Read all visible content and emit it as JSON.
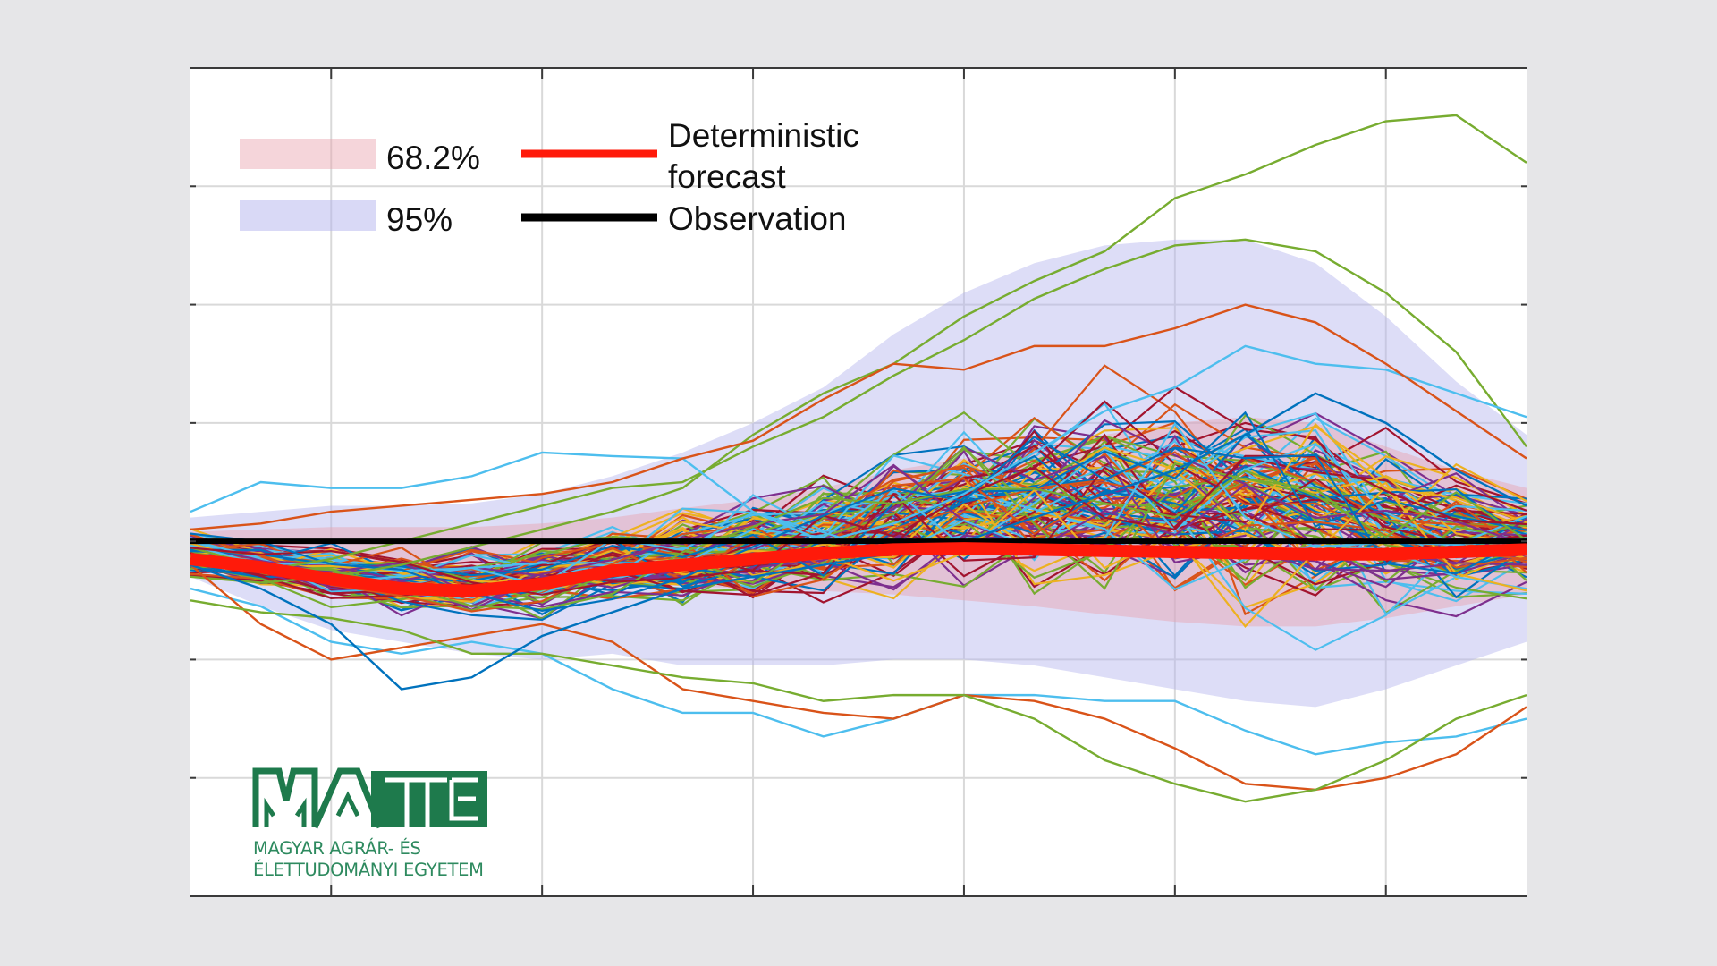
{
  "chart_data": {
    "type": "line",
    "title": "",
    "xlabel": "",
    "ylabel": "",
    "x": [
      0,
      1,
      2,
      3,
      4,
      5,
      6,
      7,
      8,
      9,
      10,
      11,
      12,
      13,
      14,
      15,
      16,
      17,
      18,
      19
    ],
    "xlim": [
      0,
      19
    ],
    "ylim": [
      -3,
      4
    ],
    "x_gridlines": [
      2,
      5,
      8,
      11,
      14,
      17
    ],
    "y_gridlines": [
      -2,
      -1,
      0,
      1,
      2,
      3
    ],
    "grid": true,
    "tick_labels_shown": false,
    "legend_placement": "top-left",
    "legend": [
      {
        "label": "68.2%",
        "kind": "band",
        "color": "#e8a2ae"
      },
      {
        "label": "95%",
        "kind": "band",
        "color": "#b3b3ee"
      },
      {
        "label": "Deterministic\nforecast",
        "kind": "line",
        "color": "#ff1a0a"
      },
      {
        "label": "Observation",
        "kind": "line",
        "color": "#000000"
      }
    ],
    "series": [
      {
        "name": "Observation",
        "color": "#000000",
        "values": [
          0,
          0,
          0,
          0,
          0,
          0,
          0,
          0,
          0,
          0,
          0,
          0,
          0,
          0,
          0,
          0,
          0,
          0,
          0,
          0
        ]
      },
      {
        "name": "Deterministic forecast",
        "color": "#ff1a0a",
        "values": [
          -0.15,
          -0.22,
          -0.32,
          -0.4,
          -0.42,
          -0.36,
          -0.25,
          -0.2,
          -0.15,
          -0.1,
          -0.07,
          -0.06,
          -0.07,
          -0.08,
          -0.09,
          -0.1,
          -0.11,
          -0.11,
          -0.09,
          -0.07
        ]
      }
    ],
    "bands": [
      {
        "name": "95%",
        "color": "#b3b3ee",
        "upper": [
          0.2,
          0.25,
          0.3,
          0.3,
          0.32,
          0.4,
          0.55,
          0.75,
          1.0,
          1.3,
          1.75,
          2.1,
          2.35,
          2.5,
          2.55,
          2.55,
          2.35,
          1.9,
          1.35,
          0.9
        ],
        "lower": [
          -0.3,
          -0.55,
          -0.75,
          -0.85,
          -0.95,
          -1.0,
          -0.95,
          -1.05,
          -1.05,
          -1.05,
          -1.0,
          -1.0,
          -1.05,
          -1.15,
          -1.25,
          -1.35,
          -1.4,
          -1.25,
          -1.05,
          -0.85
        ]
      },
      {
        "name": "68.2%",
        "color": "#e8a2ae",
        "upper": [
          0.08,
          0.1,
          0.12,
          0.12,
          0.12,
          0.15,
          0.2,
          0.28,
          0.35,
          0.45,
          0.6,
          0.7,
          0.8,
          0.9,
          1.0,
          1.05,
          1.0,
          0.8,
          0.6,
          0.45
        ],
        "lower": [
          -0.12,
          -0.2,
          -0.28,
          -0.32,
          -0.35,
          -0.35,
          -0.35,
          -0.38,
          -0.4,
          -0.42,
          -0.45,
          -0.5,
          -0.55,
          -0.62,
          -0.68,
          -0.72,
          -0.72,
          -0.65,
          -0.55,
          -0.45
        ]
      }
    ],
    "ensemble_colors": [
      "#0072bd",
      "#d95319",
      "#edb120",
      "#7e2f8e",
      "#77ac30",
      "#4dbeee",
      "#a2142f"
    ],
    "ensemble_size": 120,
    "ensemble_seed": 7,
    "ensemble_notable_members": [
      {
        "color": "#77ac30",
        "values": [
          -0.3,
          -0.35,
          -0.3,
          -0.2,
          -0.05,
          0.1,
          0.25,
          0.45,
          0.9,
          1.25,
          1.5,
          1.9,
          2.2,
          2.45,
          2.9,
          3.1,
          3.35,
          3.55,
          3.6,
          3.2
        ]
      },
      {
        "color": "#77ac30",
        "values": [
          -0.2,
          -0.25,
          -0.15,
          0.0,
          0.15,
          0.3,
          0.45,
          0.5,
          0.8,
          1.05,
          1.4,
          1.7,
          2.05,
          2.3,
          2.5,
          2.55,
          2.45,
          2.1,
          1.6,
          0.8
        ]
      },
      {
        "color": "#4dbeee",
        "values": [
          0.25,
          0.5,
          0.45,
          0.45,
          0.55,
          0.75,
          0.72,
          0.7,
          0.25,
          0.0,
          0.15,
          0.4,
          0.75,
          1.1,
          1.3,
          1.65,
          1.5,
          1.45,
          1.25,
          1.05
        ]
      },
      {
        "color": "#4dbeee",
        "values": [
          -0.4,
          -0.55,
          -0.85,
          -0.95,
          -0.85,
          -0.95,
          -1.25,
          -1.45,
          -1.45,
          -1.65,
          -1.5,
          -1.3,
          -1.3,
          -1.35,
          -1.35,
          -1.6,
          -1.8,
          -1.7,
          -1.65,
          -1.5
        ]
      },
      {
        "color": "#d95319",
        "values": [
          -0.2,
          -0.7,
          -1.0,
          -0.9,
          -0.8,
          -0.7,
          -0.85,
          -1.25,
          -1.35,
          -1.45,
          -1.5,
          -1.3,
          -1.35,
          -1.5,
          -1.75,
          -2.05,
          -2.1,
          -2.0,
          -1.8,
          -1.4
        ]
      },
      {
        "color": "#77ac30",
        "values": [
          -0.5,
          -0.6,
          -0.65,
          -0.75,
          -0.95,
          -0.95,
          -1.05,
          -1.15,
          -1.2,
          -1.35,
          -1.3,
          -1.3,
          -1.5,
          -1.85,
          -2.05,
          -2.2,
          -2.1,
          -1.85,
          -1.5,
          -1.3
        ]
      },
      {
        "color": "#d95319",
        "values": [
          0.1,
          0.15,
          0.25,
          0.3,
          0.35,
          0.4,
          0.5,
          0.7,
          0.85,
          1.2,
          1.5,
          1.45,
          1.65,
          1.65,
          1.8,
          2.0,
          1.85,
          1.5,
          1.1,
          0.7
        ]
      },
      {
        "color": "#0072bd",
        "values": [
          -0.2,
          -0.4,
          -0.7,
          -1.25,
          -1.15,
          -0.8,
          -0.6,
          -0.4,
          -0.3,
          -0.2,
          -0.1,
          0.0,
          0.2,
          0.4,
          0.6,
          0.9,
          1.25,
          1.0,
          0.6,
          0.3
        ]
      }
    ]
  },
  "legend": {
    "band68_label": "68.2%",
    "band95_label": "95%",
    "det_label_line1": "Deterministic",
    "det_label_line2": "forecast",
    "obs_label": "Observation"
  },
  "logo": {
    "wordmark": "MATE",
    "line1": "MAGYAR AGRÁR- ÉS",
    "line2": "ÉLETTUDOMÁNYI EGYETEM",
    "color": "#1e7a4c"
  }
}
